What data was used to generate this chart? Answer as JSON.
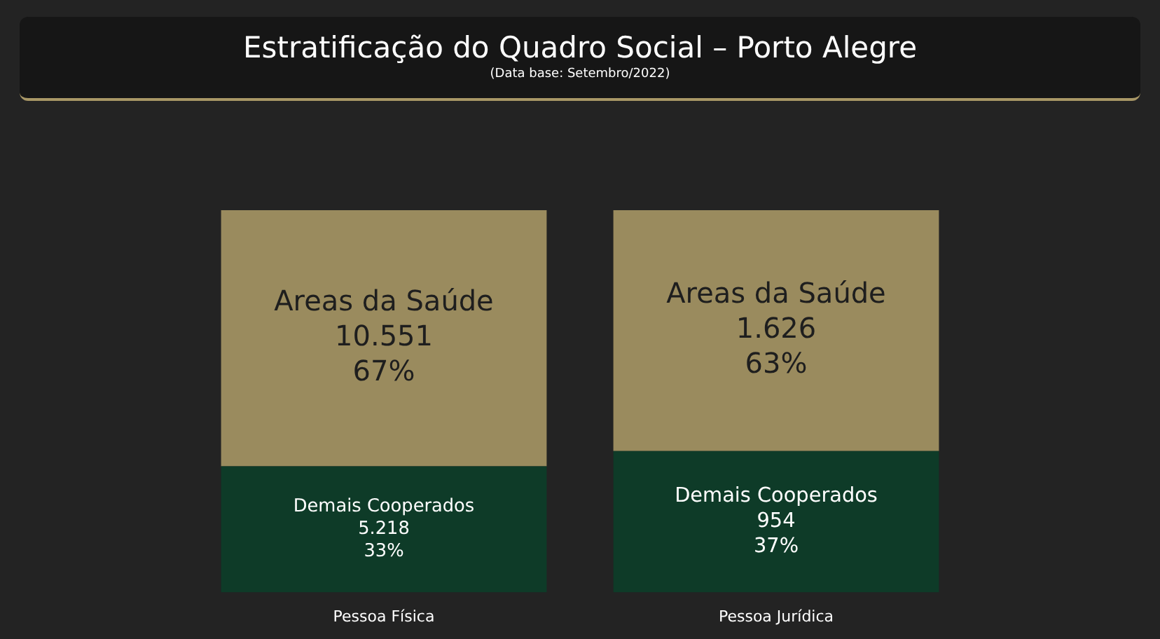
{
  "chart_data": {
    "type": "bar",
    "title": "Estratificação do Quadro Social – Porto Alegre",
    "subtitle": "(Data base: Setembro/2022)",
    "categories": [
      "Pessoa Física",
      "Pessoa Jurídica"
    ],
    "stacked": true,
    "legend": false,
    "series": [
      {
        "name": "Demais Cooperados",
        "color": "#0e3b28",
        "values": [
          33,
          37
        ],
        "value_labels": [
          "5.218\n33%",
          "954\n37%"
        ]
      },
      {
        "name": "Areas da Saúde",
        "color": "#9a8b5e",
        "values": [
          67,
          63
        ],
        "value_labels": [
          "10.551\n67%",
          "1.626\n63%"
        ]
      }
    ]
  }
}
